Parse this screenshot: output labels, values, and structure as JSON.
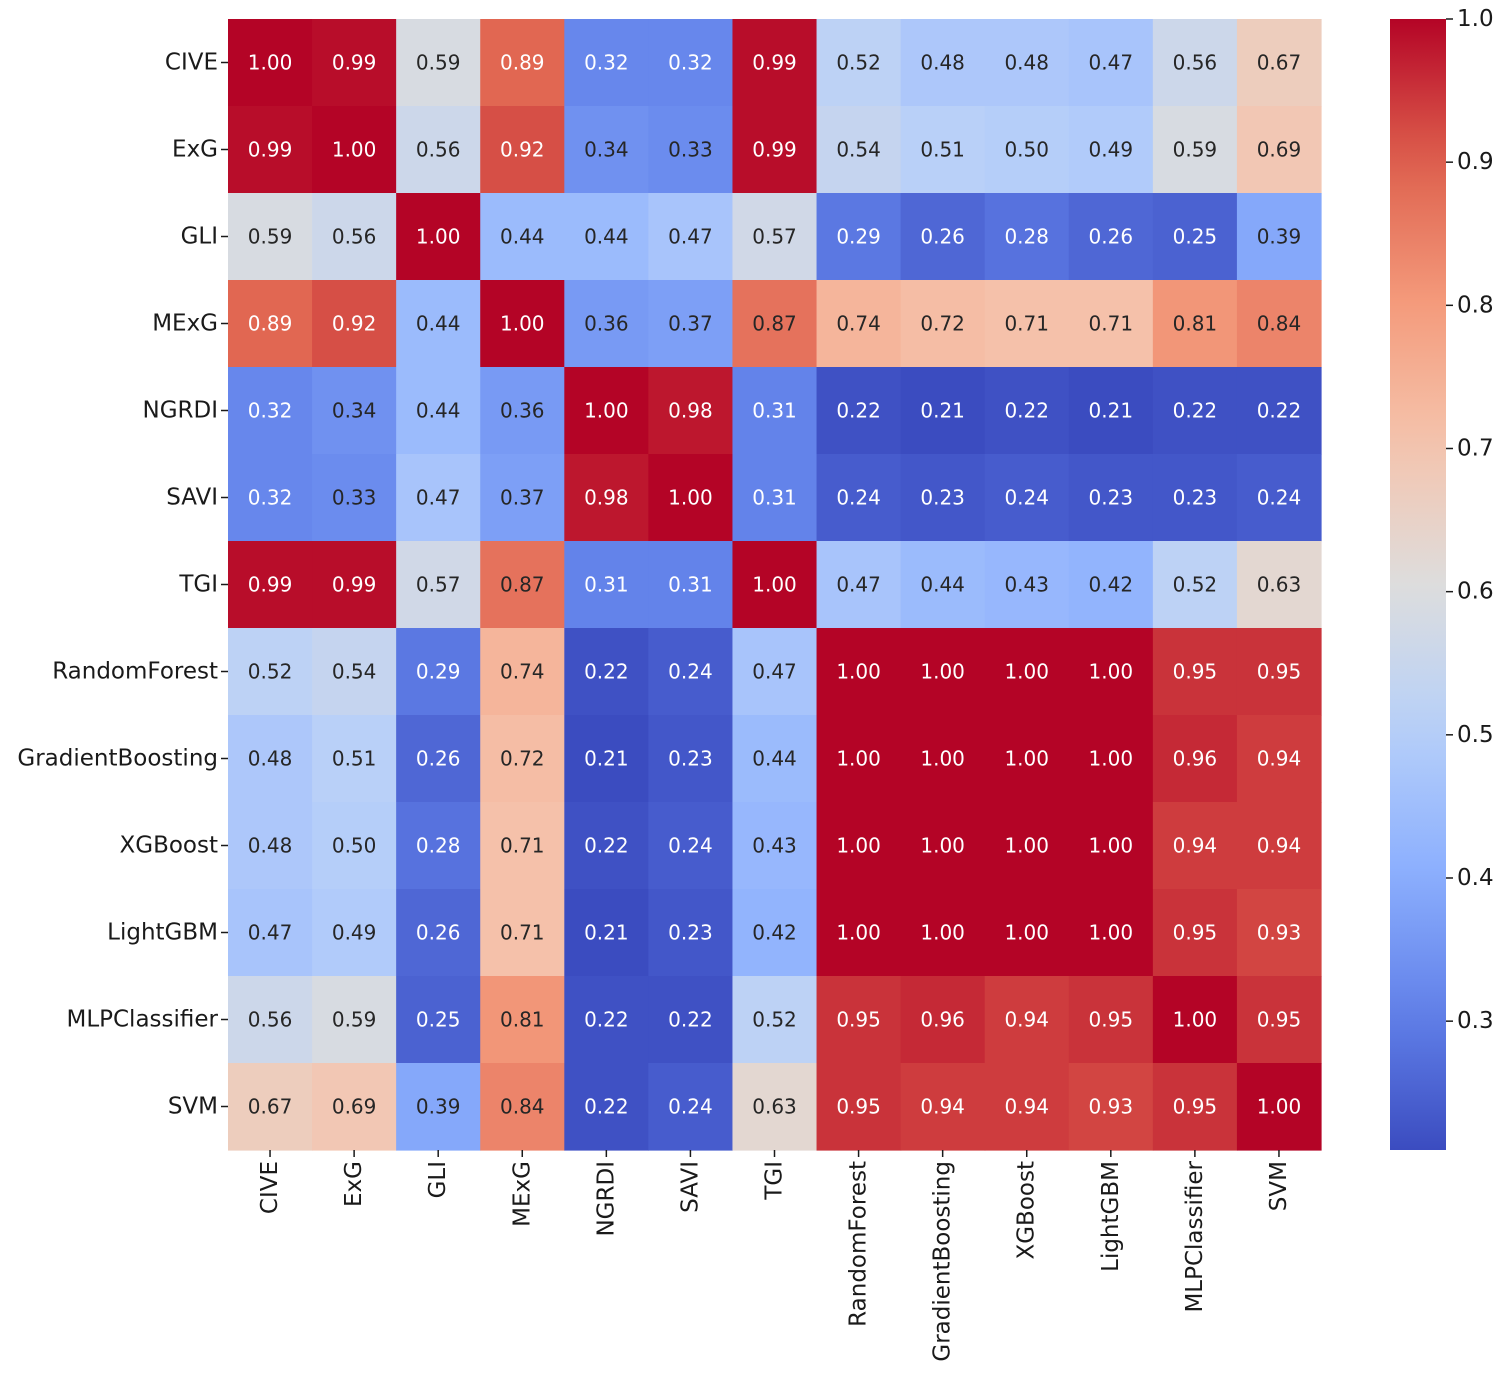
{
  "chart_data": {
    "type": "heatmap",
    "title": "",
    "xlabel": "",
    "ylabel": "",
    "labels": [
      "CIVE",
      "ExG",
      "GLI",
      "MExG",
      "NGRDI",
      "SAVI",
      "TGI",
      "RandomForest",
      "GradientBoosting",
      "XGBoost",
      "LightGBM",
      "MLPClassifier",
      "SVM"
    ],
    "values": [
      [
        1.0,
        0.99,
        0.59,
        0.89,
        0.32,
        0.32,
        0.99,
        0.52,
        0.48,
        0.48,
        0.47,
        0.56,
        0.67
      ],
      [
        0.99,
        1.0,
        0.56,
        0.92,
        0.34,
        0.33,
        0.99,
        0.54,
        0.51,
        0.5,
        0.49,
        0.59,
        0.69
      ],
      [
        0.59,
        0.56,
        1.0,
        0.44,
        0.44,
        0.47,
        0.57,
        0.29,
        0.26,
        0.28,
        0.26,
        0.25,
        0.39
      ],
      [
        0.89,
        0.92,
        0.44,
        1.0,
        0.36,
        0.37,
        0.87,
        0.74,
        0.72,
        0.71,
        0.71,
        0.81,
        0.84
      ],
      [
        0.32,
        0.34,
        0.44,
        0.36,
        1.0,
        0.98,
        0.31,
        0.22,
        0.21,
        0.22,
        0.21,
        0.22,
        0.22
      ],
      [
        0.32,
        0.33,
        0.47,
        0.37,
        0.98,
        1.0,
        0.31,
        0.24,
        0.23,
        0.24,
        0.23,
        0.23,
        0.24
      ],
      [
        0.99,
        0.99,
        0.57,
        0.87,
        0.31,
        0.31,
        1.0,
        0.47,
        0.44,
        0.43,
        0.42,
        0.52,
        0.63
      ],
      [
        0.52,
        0.54,
        0.29,
        0.74,
        0.22,
        0.24,
        0.47,
        1.0,
        1.0,
        1.0,
        1.0,
        0.95,
        0.95
      ],
      [
        0.48,
        0.51,
        0.26,
        0.72,
        0.21,
        0.23,
        0.44,
        1.0,
        1.0,
        1.0,
        1.0,
        0.96,
        0.94
      ],
      [
        0.48,
        0.5,
        0.28,
        0.71,
        0.22,
        0.24,
        0.43,
        1.0,
        1.0,
        1.0,
        1.0,
        0.94,
        0.94
      ],
      [
        0.47,
        0.49,
        0.26,
        0.71,
        0.21,
        0.23,
        0.42,
        1.0,
        1.0,
        1.0,
        1.0,
        0.95,
        0.93
      ],
      [
        0.56,
        0.59,
        0.25,
        0.81,
        0.22,
        0.22,
        0.52,
        0.95,
        0.96,
        0.94,
        0.95,
        1.0,
        0.95
      ],
      [
        0.67,
        0.69,
        0.39,
        0.84,
        0.22,
        0.24,
        0.63,
        0.95,
        0.94,
        0.94,
        0.93,
        0.95,
        1.0
      ]
    ],
    "colormap": "coolwarm",
    "vmin": 0.21,
    "vmax": 1.0,
    "colorbar": {
      "ticks": [
        1.0,
        0.9,
        0.8,
        0.7,
        0.6,
        0.5,
        0.4,
        0.3
      ],
      "tick_labels": [
        "1.0",
        "0.9",
        "0.8",
        "0.7",
        "0.6",
        "0.5",
        "0.4",
        "0.3"
      ]
    },
    "cell_format": "2 decimals"
  }
}
